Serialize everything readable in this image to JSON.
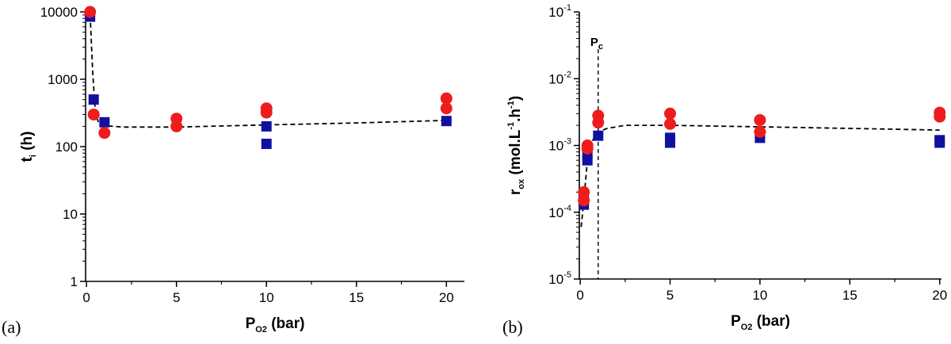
{
  "colors": {
    "square": "#1010a0",
    "circle": "#ee1c1c",
    "fit": "#000000",
    "axis": "#000000"
  },
  "chart_data": [
    {
      "type": "scatter",
      "panel_label": "(a)",
      "xlabel": {
        "base": "P",
        "sub": "O2",
        "tail": " (bar)"
      },
      "ylabel": {
        "base": "t",
        "sub": "i",
        "tail": " (h)"
      },
      "xlim": [
        -0.05,
        21
      ],
      "ylim": [
        1,
        10000
      ],
      "yscale": "log",
      "x_ticks": [
        0,
        5,
        10,
        15,
        20
      ],
      "x_tick_labels": [
        "0",
        "5",
        "10",
        "15",
        "20"
      ],
      "y_ticks": [
        1,
        10,
        100,
        1000,
        10000
      ],
      "y_tick_labels": [
        "1",
        "10",
        "100",
        "1000",
        "10000"
      ],
      "series": [
        {
          "marker": "square",
          "points": [
            [
              0.2,
              8500
            ],
            [
              0.4,
              500
            ],
            [
              1,
              230
            ],
            [
              10,
              200
            ],
            [
              10,
              110
            ],
            [
              20,
              240
            ]
          ]
        },
        {
          "marker": "circle",
          "points": [
            [
              0.2,
              10000
            ],
            [
              0.4,
              300
            ],
            [
              1,
              160
            ],
            [
              5,
              260
            ],
            [
              5,
              200
            ],
            [
              10,
              370
            ],
            [
              10,
              320
            ],
            [
              20,
              520
            ],
            [
              20,
              370
            ]
          ]
        }
      ],
      "fit": [
        [
          0.2,
          9000
        ],
        [
          0.35,
          1200
        ],
        [
          0.5,
          300
        ],
        [
          0.7,
          220
        ],
        [
          1,
          205
        ],
        [
          2,
          195
        ],
        [
          5,
          195
        ],
        [
          10,
          210
        ],
        [
          15,
          225
        ],
        [
          20,
          245
        ]
      ]
    },
    {
      "type": "scatter",
      "panel_label": "(b)",
      "xlabel": {
        "base": "P",
        "sub": "O2",
        "tail": " (bar)"
      },
      "ylabel": {
        "base": "r",
        "sub": "ox",
        "tail": " (mol.L-1.h-1)"
      },
      "xlim": [
        -0.05,
        20.1
      ],
      "ylim": [
        1e-05,
        0.1
      ],
      "yscale": "log",
      "x_ticks": [
        0,
        5,
        10,
        15,
        20
      ],
      "x_tick_labels": [
        "0",
        "5",
        "10",
        "15",
        "20"
      ],
      "y_ticks": [
        1e-05,
        0.0001,
        0.001,
        0.01,
        0.1
      ],
      "y_tick_labels": [
        {
          "base": "10",
          "exp": "-5"
        },
        {
          "base": "10",
          "exp": "-4"
        },
        {
          "base": "10",
          "exp": "-3"
        },
        {
          "base": "10",
          "exp": "-2"
        },
        {
          "base": "10",
          "exp": "-1"
        }
      ],
      "vline": {
        "x": 1,
        "label": {
          "base": "P",
          "sub": "c"
        }
      },
      "series": [
        {
          "marker": "square",
          "points": [
            [
              0.2,
              0.00015
            ],
            [
              0.2,
              0.00013
            ],
            [
              0.4,
              0.0006
            ],
            [
              0.4,
              0.00075
            ],
            [
              1,
              0.0014
            ],
            [
              5,
              0.0013
            ],
            [
              5,
              0.0011
            ],
            [
              10,
              0.0013
            ],
            [
              20,
              0.0012
            ],
            [
              20,
              0.0011
            ]
          ]
        },
        {
          "marker": "circle",
          "points": [
            [
              0.2,
              0.0002
            ],
            [
              0.2,
              0.00015
            ],
            [
              0.4,
              0.001
            ],
            [
              0.4,
              0.0009
            ],
            [
              1,
              0.0028
            ],
            [
              1,
              0.0022
            ],
            [
              5,
              0.003
            ],
            [
              5,
              0.0021
            ],
            [
              10,
              0.0024
            ],
            [
              10,
              0.0016
            ],
            [
              20,
              0.0031
            ],
            [
              20,
              0.0027
            ]
          ]
        }
      ],
      "fit": [
        [
          0.05,
          6e-05
        ],
        [
          0.2,
          0.00015
        ],
        [
          0.4,
          0.0006
        ],
        [
          0.7,
          0.0012
        ],
        [
          1,
          0.0016
        ],
        [
          1.5,
          0.0018
        ],
        [
          2.5,
          0.002
        ],
        [
          5,
          0.002
        ],
        [
          10,
          0.0019
        ],
        [
          15,
          0.0018
        ],
        [
          20,
          0.0017
        ]
      ]
    }
  ]
}
